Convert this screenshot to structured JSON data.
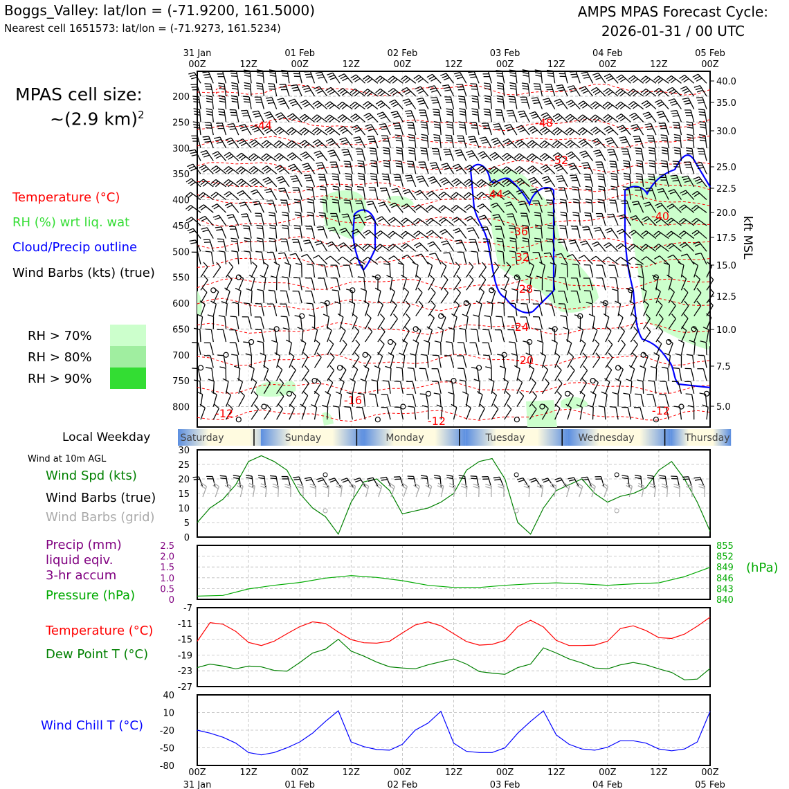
{
  "header": {
    "station": "Boggs_Valley: lat/lon = (-71.9200, 161.5000)",
    "nearest": "Nearest cell 1651573: lat/lon = (-71.9273, 161.5234)",
    "cycle_line1": "AMPS MPAS Forecast Cycle:",
    "cycle_line2": "2026-01-31 / 00 UTC"
  },
  "cell_size": {
    "line1": "MPAS cell size:",
    "line2": "~(2.9 km)",
    "sup": "2"
  },
  "legend": {
    "temperature": "Temperature (°C)",
    "rh": "RH (%) wrt liq. wat",
    "cloud": "Cloud/Precip outline",
    "wind": "Wind Barbs (kts) (true)",
    "rh70": "RH > 70%",
    "rh80": "RH > 80%",
    "rh90": "RH > 90%"
  },
  "colors": {
    "temp": "#ff0000",
    "rh_label": "#33dd33",
    "cloud": "#0000ff",
    "rh70": "#ccffcc",
    "rh80": "#a0eea0",
    "rh90": "#33dd33",
    "wind_spd": "#008000",
    "grid_barb": "#aaaaaa",
    "precip": "#800080",
    "pressure": "#00aa00",
    "dewpoint": "#008000",
    "windchill": "#0000ff",
    "weekday_band": "#5b8ee0"
  },
  "time_axis": {
    "top_dates": [
      "31 Jan",
      "01 Feb",
      "02 Feb",
      "03 Feb",
      "04 Feb",
      "05 Feb"
    ],
    "hour_labels": [
      "00Z",
      "12Z",
      "00Z",
      "12Z",
      "00Z",
      "12Z",
      "00Z",
      "12Z",
      "00Z",
      "12Z",
      "00Z"
    ],
    "bottom_dates": [
      "31 Jan",
      "01 Feb",
      "02 Feb",
      "03 Feb",
      "04 Feb",
      "05 Feb"
    ]
  },
  "profile": {
    "pressure_ticks": [
      "200",
      "250",
      "300",
      "350",
      "400",
      "450",
      "500",
      "550",
      "600",
      "650",
      "700",
      "750",
      "800"
    ],
    "kft_ticks": [
      "40.0",
      "35.0",
      "30.0",
      "25.0",
      "22.5",
      "20.0",
      "17.5",
      "15.0",
      "12.5",
      "10.0",
      "7.5",
      "5.0"
    ],
    "kft_label": "kft MSL",
    "temp_labels": [
      "-44",
      "-48",
      "-52",
      "-44",
      "-40",
      "-36",
      "-32",
      "-28",
      "-24",
      "-20",
      "-16",
      "-12",
      "-12",
      "-12"
    ]
  },
  "weekday": {
    "title": "Local Weekday",
    "days": [
      "Saturday",
      "Sunday",
      "Monday",
      "Tuesday",
      "Wednesday",
      "Thursday"
    ]
  },
  "surface_labels": {
    "wind_at": "Wind at 10m AGL",
    "wind_spd": "Wind Spd (kts)",
    "barbs_true": "Wind Barbs (true)",
    "barbs_grid": "Wind Barbs (grid)",
    "precip1": "Precip (mm)",
    "precip2": "liquid eqiv.",
    "precip3": "3-hr accum",
    "pressure": "Pressure (hPa)",
    "pressure_unit": "(hPa)",
    "temperature": "Temperature (°C)",
    "dewpoint": "Dew Point T (°C)",
    "windchill": "Wind Chill T (°C)"
  },
  "axes": {
    "wind_ticks": [
      "30",
      "25",
      "20",
      "15",
      "10",
      "5",
      "0"
    ],
    "precip_ticks": [
      "2.5",
      "2.0",
      "1.5",
      "1.0",
      "0.5",
      "0"
    ],
    "pressure_ticks": [
      "855",
      "852",
      "849",
      "846",
      "843",
      "840"
    ],
    "temp_ticks": [
      "-7",
      "-11",
      "-15",
      "-19",
      "-23",
      "-27"
    ],
    "chill_ticks": [
      "40",
      "10",
      "-20",
      "-50",
      "-80"
    ]
  },
  "chart_data": [
    {
      "type": "line",
      "name": "Wind Spd (kts)",
      "x_hours": [
        0,
        3,
        6,
        9,
        12,
        15,
        18,
        21,
        24,
        27,
        30,
        33,
        36,
        39,
        42,
        45,
        48,
        51,
        54,
        57,
        60,
        63,
        66,
        69,
        72,
        75,
        78,
        81,
        84,
        87,
        90,
        93,
        96,
        99,
        102,
        105,
        108,
        111,
        114,
        117,
        120
      ],
      "values": [
        5,
        10,
        13,
        18,
        26,
        28,
        26,
        23,
        15,
        10,
        7,
        1,
        12,
        19,
        20,
        16,
        8,
        9,
        10,
        12,
        15,
        23,
        26,
        27,
        20,
        5,
        1,
        10,
        16,
        18,
        20,
        15,
        12,
        14,
        15,
        17,
        23,
        26,
        20,
        12,
        2
      ],
      "ylim": [
        0,
        30
      ]
    },
    {
      "type": "line",
      "name": "Pressure (hPa)",
      "x_hours": [
        0,
        6,
        12,
        18,
        24,
        30,
        36,
        42,
        48,
        54,
        60,
        66,
        72,
        78,
        84,
        90,
        96,
        102,
        108,
        114,
        120
      ],
      "values": [
        840.9,
        841.1,
        842.9,
        843.9,
        844.7,
        845.9,
        846.6,
        846.1,
        845.2,
        843.9,
        843.3,
        843.3,
        843.9,
        844.3,
        844.6,
        844.3,
        843.9,
        844.3,
        844.6,
        846.3,
        848.9
      ],
      "ylim": [
        840,
        855
      ]
    },
    {
      "type": "line",
      "name": "Temperature (°C)",
      "x_hours": [
        0,
        3,
        6,
        9,
        12,
        15,
        18,
        21,
        24,
        27,
        30,
        33,
        36,
        39,
        42,
        45,
        48,
        51,
        54,
        57,
        60,
        63,
        66,
        69,
        72,
        75,
        78,
        81,
        84,
        87,
        90,
        93,
        96,
        99,
        102,
        105,
        108,
        111,
        114,
        117,
        120
      ],
      "values": [
        -15.5,
        -10.8,
        -11.2,
        -13,
        -15.8,
        -16.6,
        -15.5,
        -13.6,
        -11.8,
        -10.6,
        -11,
        -13.2,
        -15.1,
        -15.9,
        -16,
        -15.5,
        -13.4,
        -11.4,
        -10.6,
        -11.6,
        -13.6,
        -15.6,
        -16.5,
        -16.3,
        -15.3,
        -11.8,
        -10.2,
        -11.9,
        -15.3,
        -16.6,
        -16.6,
        -16.5,
        -15.5,
        -12.3,
        -11.6,
        -12.8,
        -14.6,
        -14.8,
        -13.7,
        -11.7,
        -9.4
      ],
      "ylim": [
        -27,
        -7
      ]
    },
    {
      "type": "line",
      "name": "Dew Point T (°C)",
      "x_hours": [
        0,
        3,
        6,
        9,
        12,
        15,
        18,
        21,
        24,
        27,
        30,
        33,
        36,
        39,
        42,
        45,
        48,
        51,
        54,
        57,
        60,
        63,
        66,
        69,
        72,
        75,
        78,
        81,
        84,
        87,
        90,
        93,
        96,
        99,
        102,
        105,
        108,
        111,
        114,
        117,
        120
      ],
      "values": [
        -22.2,
        -21.3,
        -21.8,
        -22.5,
        -21.8,
        -22,
        -22.9,
        -23.1,
        -20.9,
        -18.5,
        -17.5,
        -15,
        -18,
        -19.3,
        -20.8,
        -22,
        -22.3,
        -22.5,
        -21.5,
        -20.7,
        -20,
        -21.3,
        -23.2,
        -23.6,
        -23.9,
        -22.2,
        -21.3,
        -17.2,
        -18.5,
        -20,
        -21,
        -22.3,
        -22.5,
        -21.5,
        -20.9,
        -21.5,
        -22.5,
        -23.4,
        -25.3,
        -25.1,
        -22.4
      ],
      "ylim": [
        -27,
        -7
      ]
    },
    {
      "type": "line",
      "name": "Wind Chill T (°C)",
      "x_hours": [
        0,
        3,
        6,
        9,
        12,
        15,
        18,
        21,
        24,
        27,
        30,
        33,
        36,
        39,
        42,
        45,
        48,
        51,
        54,
        57,
        60,
        63,
        66,
        69,
        72,
        75,
        78,
        81,
        84,
        87,
        90,
        93,
        96,
        99,
        102,
        105,
        108,
        111,
        114,
        117,
        120
      ],
      "values": [
        -20,
        -25,
        -32,
        -42,
        -58,
        -62,
        -58,
        -50,
        -40,
        -25,
        -5,
        13,
        -40,
        -48,
        -53,
        -54,
        -44,
        -20,
        -8,
        12,
        -42,
        -56,
        -58,
        -58,
        -50,
        -25,
        -5,
        13,
        -28,
        -44,
        -52,
        -54,
        -49,
        -38,
        -38,
        -42,
        -52,
        -55,
        -52,
        -40,
        12
      ],
      "ylim": [
        -80,
        40
      ]
    }
  ]
}
